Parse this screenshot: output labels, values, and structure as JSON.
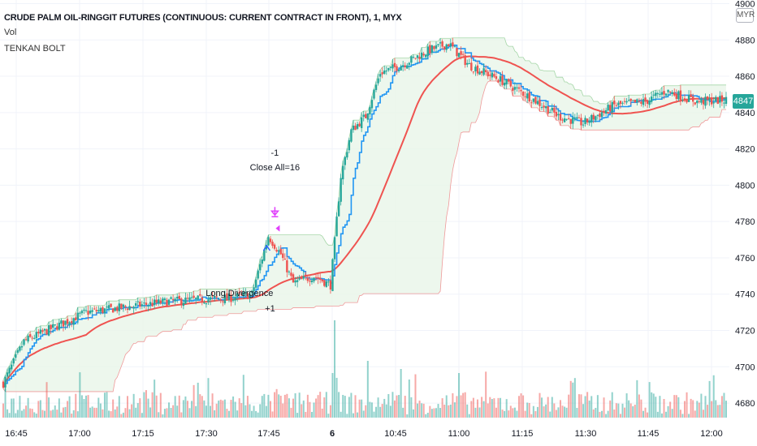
{
  "header": {
    "title": "CRUDE PALM OIL-RINGGIT FUTURES (CONTINUOUS: CURRENT CONTRACT IN FRONT), 1, MYX",
    "indicator_vol": "Vol",
    "indicator_strategy": "TENKAN BOLT",
    "currency": "MYR",
    "last_price": "4847"
  },
  "colors": {
    "up": "#26a69a",
    "down": "#ef5350",
    "tenkan": "#2196f3",
    "ma": "#ef5350",
    "cloud_fill": "#e8f5e9",
    "cloud_fill_bear": "#fce4e4",
    "signal_magenta": "#e040fb",
    "signal_blue": "#2962ff"
  },
  "chart_data": {
    "type": "candlestick",
    "x_ticks": [
      "16:45",
      "17:00",
      "17:15",
      "17:30",
      "17:45",
      "6",
      "10:45",
      "11:00",
      "11:15",
      "11:30",
      "11:45",
      "12:00"
    ],
    "y_ticks": [
      4680,
      4700,
      4720,
      4740,
      4760,
      4780,
      4800,
      4820,
      4840,
      4860,
      4880,
      4900
    ],
    "ylim": [
      4672,
      4902
    ],
    "annotations": [
      {
        "type": "short",
        "lines": [
          "-1",
          "Close All=16"
        ],
        "price": 4792
      },
      {
        "type": "long",
        "lines": [
          "Long Divergence",
          "+1"
        ],
        "price": 4744
      }
    ],
    "anchors": [
      {
        "i": 0,
        "close": 4691
      },
      {
        "i": 10,
        "close": 4714
      },
      {
        "i": 40,
        "close": 4730
      },
      {
        "i": 80,
        "close": 4736
      },
      {
        "i": 110,
        "close": 4738
      },
      {
        "i": 120,
        "close": 4740
      },
      {
        "i": 128,
        "close": 4772
      },
      {
        "i": 134,
        "close": 4762
      },
      {
        "i": 140,
        "close": 4746
      },
      {
        "i": 150,
        "close": 4750
      },
      {
        "i": 158,
        "close": 4745
      },
      {
        "i": 163,
        "close": 4805
      },
      {
        "i": 168,
        "close": 4830
      },
      {
        "i": 175,
        "close": 4838
      },
      {
        "i": 182,
        "close": 4862
      },
      {
        "i": 192,
        "close": 4866
      },
      {
        "i": 205,
        "close": 4874
      },
      {
        "i": 215,
        "close": 4878
      },
      {
        "i": 225,
        "close": 4866
      },
      {
        "i": 240,
        "close": 4858
      },
      {
        "i": 255,
        "close": 4848
      },
      {
        "i": 268,
        "close": 4838
      },
      {
        "i": 280,
        "close": 4834
      },
      {
        "i": 295,
        "close": 4844
      },
      {
        "i": 310,
        "close": 4846
      },
      {
        "i": 320,
        "close": 4852
      },
      {
        "i": 335,
        "close": 4846
      },
      {
        "i": 349,
        "close": 4847
      }
    ]
  }
}
